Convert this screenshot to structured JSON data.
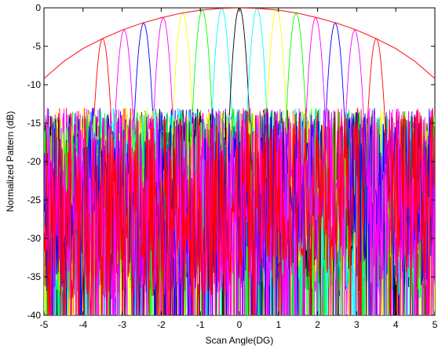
{
  "chart_data": {
    "type": "line",
    "title": "",
    "xlabel": "Scan Angle(DG)",
    "ylabel": "Normalized Pattern (dB)",
    "xlim": [
      -5,
      5
    ],
    "ylim": [
      -40,
      0
    ],
    "xticks": [
      -5,
      -4,
      -3,
      -2,
      -1,
      0,
      1,
      2,
      3,
      4,
      5
    ],
    "yticks": [
      0,
      -5,
      -10,
      -15,
      -20,
      -25,
      -30,
      -35,
      -40
    ],
    "grid": false,
    "legend": "none",
    "envelope": {
      "color": "#ff2020",
      "points": [
        [
          -5,
          -9.2
        ],
        [
          -4.5,
          -7.0
        ],
        [
          -4.0,
          -5.3
        ],
        [
          -3.5,
          -4.0
        ],
        [
          -3.0,
          -2.9
        ],
        [
          -2.5,
          -2.0
        ],
        [
          -2.0,
          -1.3
        ],
        [
          -1.5,
          -0.7
        ],
        [
          -1.0,
          -0.3
        ],
        [
          -0.5,
          -0.08
        ],
        [
          0,
          0
        ],
        [
          0.5,
          -0.08
        ],
        [
          1.0,
          -0.3
        ],
        [
          1.5,
          -0.7
        ],
        [
          2.0,
          -1.3
        ],
        [
          2.5,
          -2.0
        ],
        [
          3.0,
          -2.9
        ],
        [
          3.5,
          -4.0
        ],
        [
          4.0,
          -5.3
        ],
        [
          4.5,
          -7.0
        ],
        [
          5,
          -9.2
        ]
      ]
    },
    "beams": [
      {
        "center": -3.5,
        "peak": -4.0,
        "color": "#ff0000"
      },
      {
        "center": -2.95,
        "peak": -2.9,
        "color": "#ff00ff"
      },
      {
        "center": -2.45,
        "peak": -2.0,
        "color": "#0000ff"
      },
      {
        "center": -1.95,
        "peak": -1.3,
        "color": "#ff00ff"
      },
      {
        "center": -1.45,
        "peak": -0.7,
        "color": "#ffff00"
      },
      {
        "center": -0.95,
        "peak": -0.3,
        "color": "#00ff00"
      },
      {
        "center": -0.45,
        "peak": -0.08,
        "color": "#00ffff"
      },
      {
        "center": 0.0,
        "peak": 0.0,
        "color": "#000000"
      },
      {
        "center": 0.45,
        "peak": -0.08,
        "color": "#00ffff"
      },
      {
        "center": 0.95,
        "peak": -0.3,
        "color": "#ffff00"
      },
      {
        "center": 1.45,
        "peak": -0.7,
        "color": "#00ff00"
      },
      {
        "center": 1.95,
        "peak": -1.3,
        "color": "#ff00ff"
      },
      {
        "center": 2.45,
        "peak": -2.0,
        "color": "#0000ff"
      },
      {
        "center": 2.95,
        "peak": -2.9,
        "color": "#ff00ff"
      },
      {
        "center": 3.5,
        "peak": -4.0,
        "color": "#ff0000"
      }
    ]
  }
}
